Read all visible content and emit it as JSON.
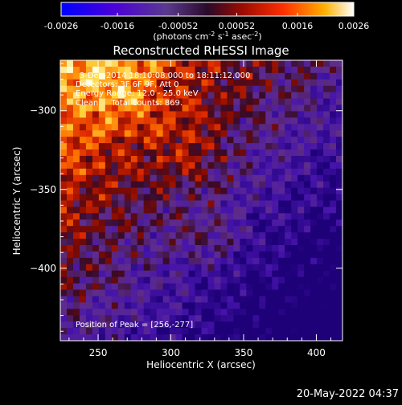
{
  "colorbar": {
    "ticks": [
      "-0.0026",
      "-0.0016",
      "-0.00052",
      "0.00052",
      "0.0016",
      "0.0026"
    ],
    "unit_main": "(photons cm",
    "unit_exp1": "-2",
    "unit_mid": " s",
    "unit_exp2": "-1",
    "unit_tail": " asec",
    "unit_exp3": "-2",
    "unit_close": ")",
    "min": -0.0026,
    "max": 0.0026
  },
  "chart_data": {
    "type": "heatmap",
    "title": "Reconstructed RHESSI Image",
    "xlabel": "Heliocentric X (arcsec)",
    "ylabel": "Heliocentric Y (arcsec)",
    "xlim": [
      224,
      418
    ],
    "ylim": [
      -446,
      -268
    ],
    "xticks": [
      250,
      300,
      350,
      400
    ],
    "yticks": [
      -300,
      -350,
      -400
    ],
    "colormap": "rhessi-bipolar",
    "colorbar_min": -0.0026,
    "colorbar_max": 0.0026,
    "annotations": [
      "3-Dec-2014 18:10:08.000 to 18:11:12.000",
      "Detectors: 3F 6F 9F, Att 0",
      "Energy Range: 12.0 - 25.0 keV",
      "Clean     Total counts: 869.",
      "Position of Peak = [256,-277]"
    ]
  },
  "timestamp": "20-May-2022 04:37"
}
